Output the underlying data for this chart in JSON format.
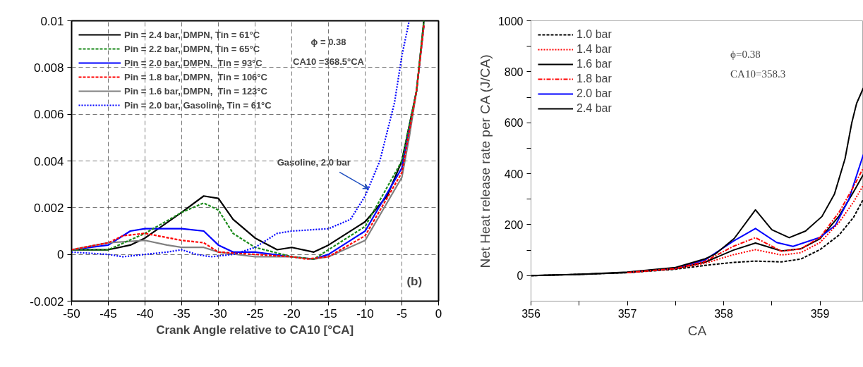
{
  "chart_data": [
    {
      "type": "line",
      "xlabel": "Crank Angle relative to CA10 [°CA]",
      "xlim": [
        -50,
        0
      ],
      "ylim": [
        -0.002,
        0.01
      ],
      "xticks": [
        -50,
        -45,
        -40,
        -35,
        -30,
        -25,
        -20,
        -15,
        -10,
        -5,
        0
      ],
      "yticks": [
        -0.002,
        0,
        0.002,
        0.004,
        0.006,
        0.008,
        0.01
      ],
      "grid": true,
      "legend": "top left",
      "series": [
        {
          "name": "Pin = 2.4 bar, DMPN, Tin = 61°C",
          "color": "#000000",
          "line_style": "solid",
          "x": [
            -50,
            -45,
            -42,
            -40,
            -35,
            -32,
            -30,
            -28,
            -25,
            -22,
            -20,
            -17,
            -15,
            -10,
            -7,
            -5,
            -3,
            -2
          ],
          "values": [
            0.0002,
            0.0002,
            0.0004,
            0.0007,
            0.0018,
            0.0025,
            0.0024,
            0.0015,
            0.0007,
            0.0002,
            0.0003,
            0.0001,
            0.0004,
            0.0014,
            0.0025,
            0.004,
            0.007,
            0.01
          ]
        },
        {
          "name": "Pin = 2.2 bar, DMPN, Tin = 65°C",
          "color": "#1a8a1a",
          "line_style": "dashed",
          "x": [
            -50,
            -45,
            -40,
            -35,
            -32,
            -30,
            -28,
            -25,
            -20,
            -17,
            -15,
            -10,
            -5,
            -3,
            -2
          ],
          "values": [
            0.0002,
            0.0002,
            0.0009,
            0.0018,
            0.0022,
            0.0019,
            0.0009,
            0.0003,
            -0.0001,
            -0.0002,
            0.0002,
            0.0012,
            0.004,
            0.007,
            0.01
          ]
        },
        {
          "name": "Pin = 2.0 bar, DMPN,  Tin = 93°C",
          "color": "#0000ff",
          "line_style": "solid",
          "x": [
            -50,
            -45,
            -42,
            -40,
            -35,
            -32,
            -30,
            -28,
            -25,
            -20,
            -17,
            -15,
            -10,
            -5,
            -3,
            -2
          ],
          "values": [
            0.0002,
            0.0004,
            0.001,
            0.0011,
            0.0011,
            0.001,
            0.0004,
            0.0001,
            0.0001,
            -0.0001,
            -0.0002,
            0.0,
            0.001,
            0.0037,
            0.007,
            0.0098
          ]
        },
        {
          "name": "Pin = 1.8 bar, DMPN,  Tin = 106°C",
          "color": "#ff0000",
          "line_style": "dashed",
          "x": [
            -50,
            -45,
            -43,
            -40,
            -35,
            -32,
            -30,
            -25,
            -20,
            -18,
            -15,
            -10,
            -5,
            -3,
            -2
          ],
          "values": [
            0.0002,
            0.0005,
            0.0008,
            0.0009,
            0.0006,
            0.0005,
            0.0001,
            0.0,
            -0.0001,
            -0.0002,
            -0.0001,
            0.0008,
            0.0035,
            0.007,
            0.0098
          ]
        },
        {
          "name": "Pin = 1.6 bar, DMPN,  Tin = 123°C",
          "color": "#808080",
          "line_style": "solid",
          "x": [
            -50,
            -45,
            -40,
            -37,
            -35,
            -32,
            -30,
            -25,
            -20,
            -17,
            -15,
            -10,
            -5,
            -4,
            -3,
            -2
          ],
          "values": [
            0.0002,
            0.0005,
            0.0006,
            0.0004,
            0.0003,
            0.0003,
            0.0001,
            -0.0001,
            -0.0001,
            -0.0002,
            -0.0001,
            0.0006,
            0.0033,
            0.005,
            0.007,
            0.0098
          ]
        },
        {
          "name": "Pin = 2.0 bar, Gasoline, Tin = 61°C",
          "color": "#0000ff",
          "line_style": "dotted",
          "x": [
            -50,
            -45,
            -43,
            -40,
            -37,
            -35,
            -33,
            -31,
            -28,
            -25,
            -22,
            -20,
            -15,
            -12,
            -10,
            -8,
            -6,
            -5,
            -4
          ],
          "values": [
            0.0001,
            0.0,
            -0.0001,
            0.0,
            0.0001,
            0.0002,
            0.0,
            -0.0001,
            0.0,
            0.0003,
            0.0009,
            0.001,
            0.0011,
            0.0015,
            0.0025,
            0.004,
            0.0065,
            0.0085,
            0.01
          ]
        }
      ],
      "annotations": [
        "ϕ = 0.38",
        "CA10 =368.5°CA",
        "(b)",
        {
          "text": "Gasoline, 2.0 bar",
          "x": -9.5,
          "y": 0.0028
        }
      ]
    },
    {
      "type": "line",
      "xlabel": "CA",
      "ylabel": "Net Heat release rate per CA (J/CA)",
      "xlim": [
        356,
        359.45
      ],
      "ylim": [
        -100,
        1000
      ],
      "xticks": [
        356,
        {
          "value": 356.5,
          "label": null
        },
        357,
        {
          "value": 357.5,
          "label": null
        },
        358,
        {
          "value": 358.5,
          "label": null
        },
        359
      ],
      "yticks": [
        0,
        {
          "value": 100,
          "label": null
        },
        200,
        {
          "value": 300,
          "label": null
        },
        400,
        {
          "value": 500,
          "label": null
        },
        600,
        {
          "value": 700,
          "label": null
        },
        800,
        {
          "value": 900,
          "label": null
        },
        1000
      ],
      "legend": "top left",
      "series": [
        {
          "name": "1.0 bar",
          "color": "#000000",
          "line_style": "dashed",
          "x": [
            356,
            356.5,
            357,
            357.5,
            357.8,
            358.1,
            358.33,
            358.6,
            358.8,
            359.0,
            359.2,
            359.35,
            359.45
          ],
          "values": [
            0,
            5,
            12,
            25,
            40,
            52,
            57,
            54,
            65,
            102,
            160,
            230,
            300
          ]
        },
        {
          "name": "1.4 bar",
          "color": "#ff0000",
          "line_style": "dotted",
          "x": [
            357,
            357.5,
            357.8,
            358.1,
            358.33,
            358.6,
            358.8,
            359.0,
            359.2,
            359.35,
            359.45
          ],
          "values": [
            12,
            27,
            48,
            82,
            102,
            81,
            90,
            130,
            210,
            290,
            355
          ]
        },
        {
          "name": "1.6 bar",
          "color": "#000000",
          "line_style": "solid",
          "x": [
            356,
            356.5,
            357,
            357.5,
            357.8,
            358.1,
            358.33,
            358.6,
            358.8,
            359.0,
            359.2,
            359.35,
            359.45
          ],
          "values": [
            0,
            5,
            12,
            28,
            52,
            100,
            128,
            97,
            105,
            145,
            235,
            330,
            397
          ]
        },
        {
          "name": "1.8 bar",
          "color": "#ff0000",
          "line_style": "dashdot",
          "x": [
            357,
            357.5,
            357.8,
            358.1,
            358.33,
            358.6,
            358.8,
            359.0,
            359.2,
            359.35,
            359.45
          ],
          "values": [
            12,
            28,
            55,
            115,
            149,
            96,
            105,
            150,
            250,
            350,
            423
          ]
        },
        {
          "name": "2.0 bar",
          "color": "#0000ff",
          "line_style": "solid",
          "x": [
            357,
            357.5,
            357.8,
            358.1,
            358.33,
            358.55,
            358.72,
            359.0,
            359.16,
            359.3,
            359.45
          ],
          "values": [
            13,
            30,
            60,
            135,
            185,
            130,
            115,
            150,
            198,
            300,
            475
          ]
        },
        {
          "name": "2.4 bar",
          "color": "#000000",
          "line_style": "solid",
          "x": [
            356,
            356.5,
            357,
            357.5,
            357.8,
            357.91,
            358.11,
            358.33,
            358.5,
            358.68,
            358.85,
            359.02,
            359.15,
            359.26,
            359.33,
            359.38,
            359.45
          ],
          "values": [
            0,
            5,
            14,
            32,
            65,
            84,
            146,
            258,
            180,
            149,
            175,
            232,
            320,
            459,
            600,
            676,
            736
          ]
        }
      ],
      "annotations": [
        "ϕ=0.38",
        "CA10=358.3"
      ]
    }
  ]
}
